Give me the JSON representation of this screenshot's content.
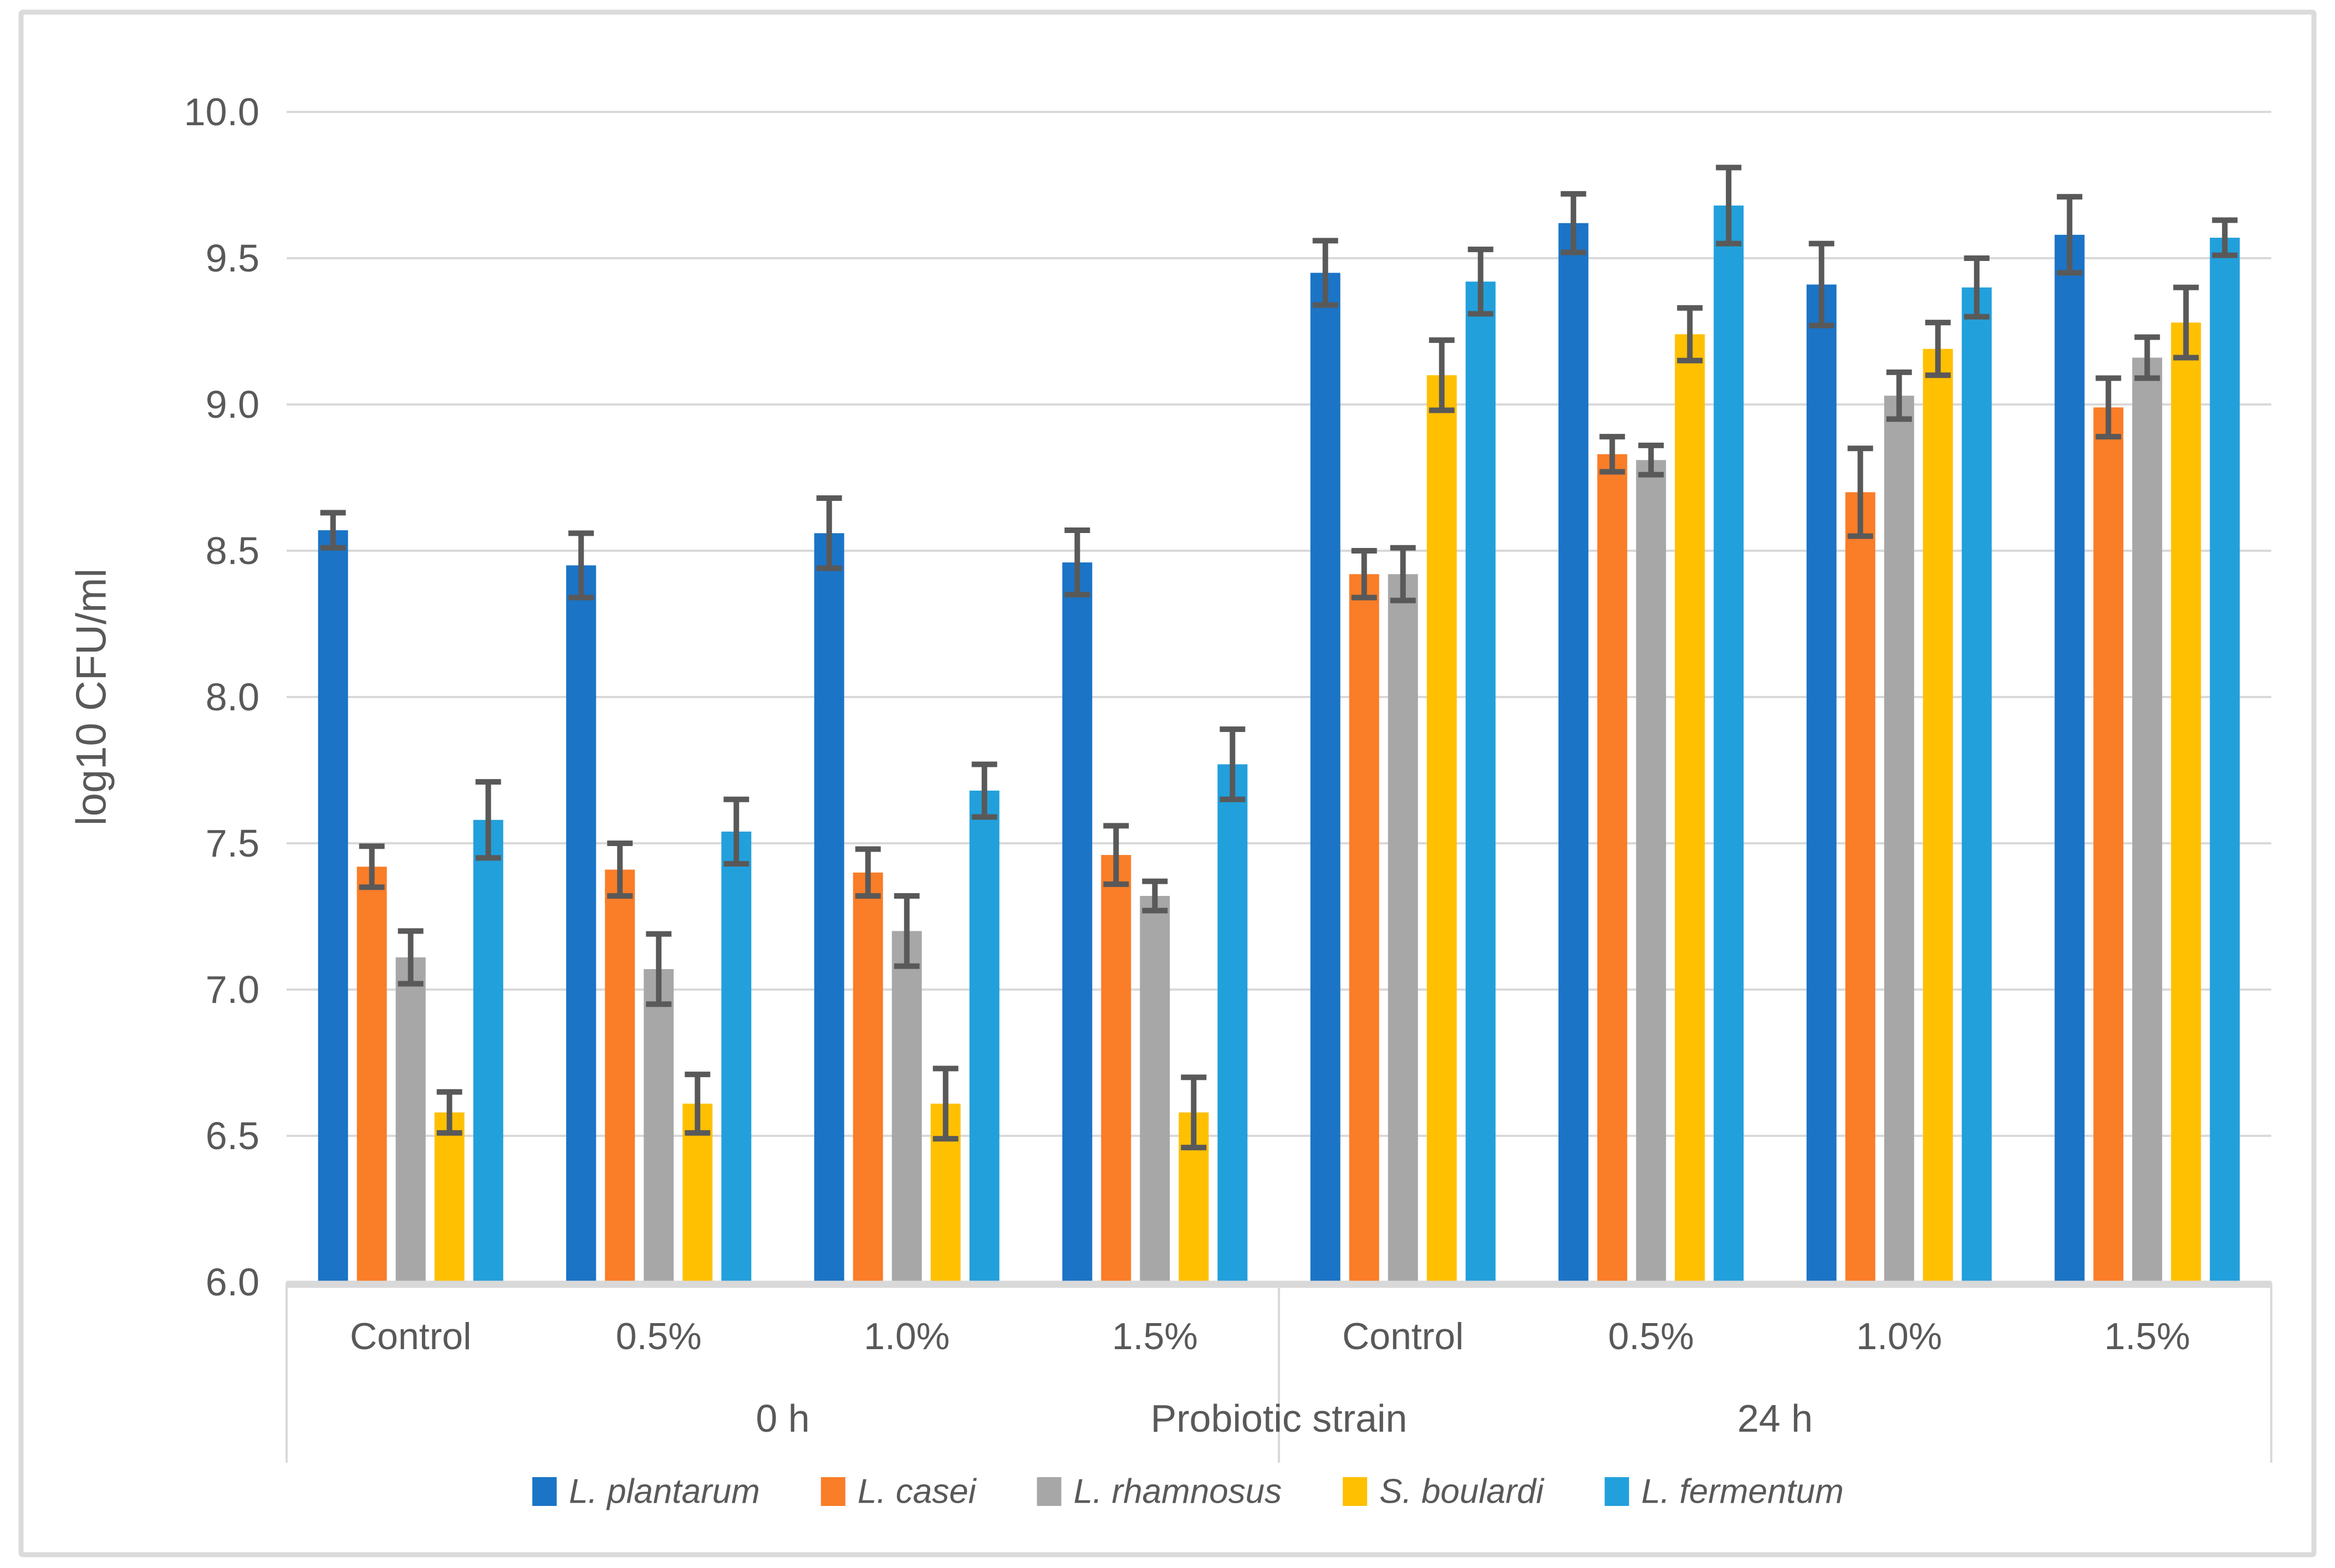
{
  "figure": {
    "background": "#FFFFFF",
    "border_color": "#DBDBDB"
  },
  "chart_data": {
    "type": "bar",
    "title": "",
    "ylabel": "log10 CFU/ml",
    "xlabel": "Probiotic strain",
    "ylim": [
      6.0,
      10.0
    ],
    "ytick_step": 0.5,
    "grid": true,
    "legend_position": "bottom",
    "time_labels": [
      "0 h",
      "24 h"
    ],
    "categories": [
      "Control",
      "0.5%",
      "1.0%",
      "1.5%",
      "Control",
      "0.5%",
      "1.0%",
      "1.5%"
    ],
    "series": [
      {
        "name": "L. plantarum",
        "color": "#1B74C6",
        "values": [
          8.57,
          8.45,
          8.56,
          8.46,
          9.45,
          9.62,
          9.41,
          9.58
        ],
        "errors": [
          0.06,
          0.11,
          0.12,
          0.11,
          0.11,
          0.1,
          0.14,
          0.13
        ]
      },
      {
        "name": "L. casei",
        "color": "#FA7D28",
        "values": [
          7.42,
          7.41,
          7.4,
          7.46,
          8.42,
          8.83,
          8.7,
          8.99
        ],
        "errors": [
          0.07,
          0.09,
          0.08,
          0.1,
          0.08,
          0.06,
          0.15,
          0.1
        ]
      },
      {
        "name": "L. rhamnosus",
        "color": "#A7A7A7",
        "values": [
          7.11,
          7.07,
          7.2,
          7.32,
          8.42,
          8.81,
          9.03,
          9.16
        ],
        "errors": [
          0.09,
          0.12,
          0.12,
          0.05,
          0.09,
          0.05,
          0.08,
          0.07
        ]
      },
      {
        "name": "S. boulardi",
        "color": "#FFC002",
        "values": [
          6.58,
          6.61,
          6.61,
          6.58,
          9.1,
          9.24,
          9.19,
          9.28
        ],
        "errors": [
          0.07,
          0.1,
          0.12,
          0.12,
          0.12,
          0.09,
          0.09,
          0.12
        ]
      },
      {
        "name": "L. fermentum",
        "color": "#22A0DC",
        "values": [
          7.58,
          7.54,
          7.68,
          7.77,
          9.42,
          9.68,
          9.4,
          9.57
        ],
        "errors": [
          0.13,
          0.11,
          0.09,
          0.12,
          0.11,
          0.13,
          0.1,
          0.06
        ]
      }
    ],
    "error_bar_color": "#595959",
    "gridline_color": "#D9D9D9",
    "axis_line_color": "#D9D9D9",
    "axis_text_color": "#595959"
  }
}
